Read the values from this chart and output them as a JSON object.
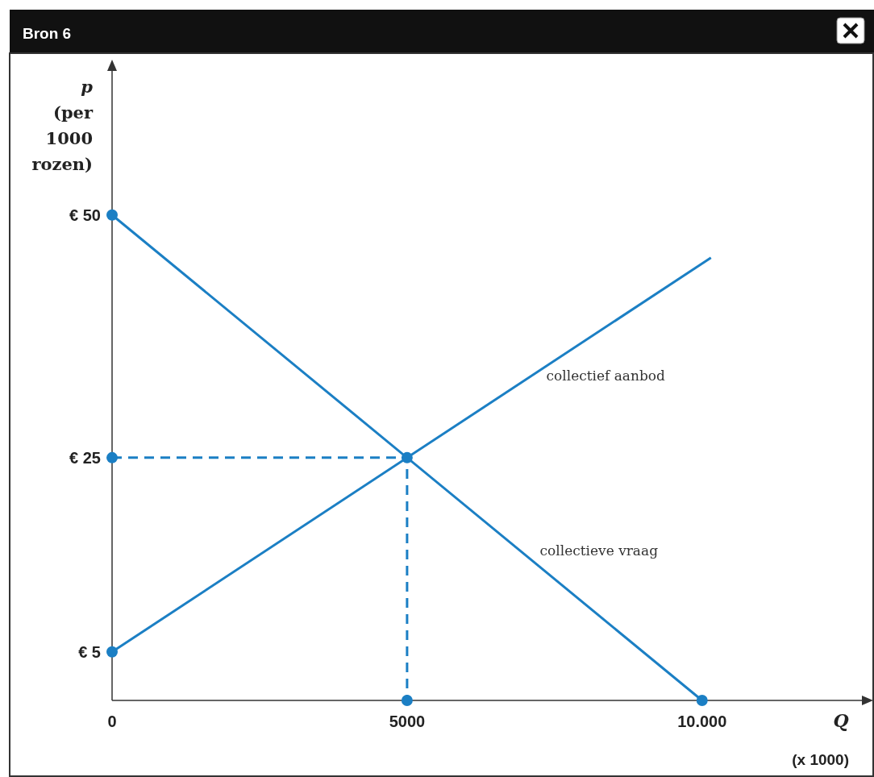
{
  "chart_data": {
    "type": "line",
    "title": "Bron 6",
    "xlabel": "Q (x 1000)",
    "ylabel": "p (per 1000 rozen)",
    "xlim": [
      0,
      12900
    ],
    "ylim": [
      0,
      66
    ],
    "xticks": [
      0,
      5000,
      {
        "value": 10000,
        "label": "10.000"
      }
    ],
    "yticks": [
      {
        "value": 5,
        "label": "€ 5"
      },
      {
        "value": 25,
        "label": "€ 25"
      },
      {
        "value": 50,
        "label": "€ 50"
      }
    ],
    "grid": false,
    "legend": false,
    "marker": "none",
    "series": [
      {
        "name": "collectief aanbod",
        "color": "#1b7fc4",
        "x": [
          0,
          10150
        ],
        "values": [
          5,
          45.6
        ],
        "line_style": "solid"
      },
      {
        "name": "collectieve vraag",
        "color": "#1b7fc4",
        "x": [
          0,
          10000
        ],
        "values": [
          50,
          0
        ],
        "line_style": "solid"
      },
      {
        "color": "#1b7fc4",
        "x": [
          0,
          5000,
          5000
        ],
        "values": [
          25,
          25,
          0
        ],
        "line_style": "dashed"
      },
      {
        "type": "scatter",
        "color": "#1b7fc4",
        "marker": "circle",
        "x": [
          0,
          0,
          0,
          5000,
          5000,
          10000
        ],
        "values": [
          50,
          25,
          5,
          25,
          0,
          0
        ]
      }
    ]
  }
}
